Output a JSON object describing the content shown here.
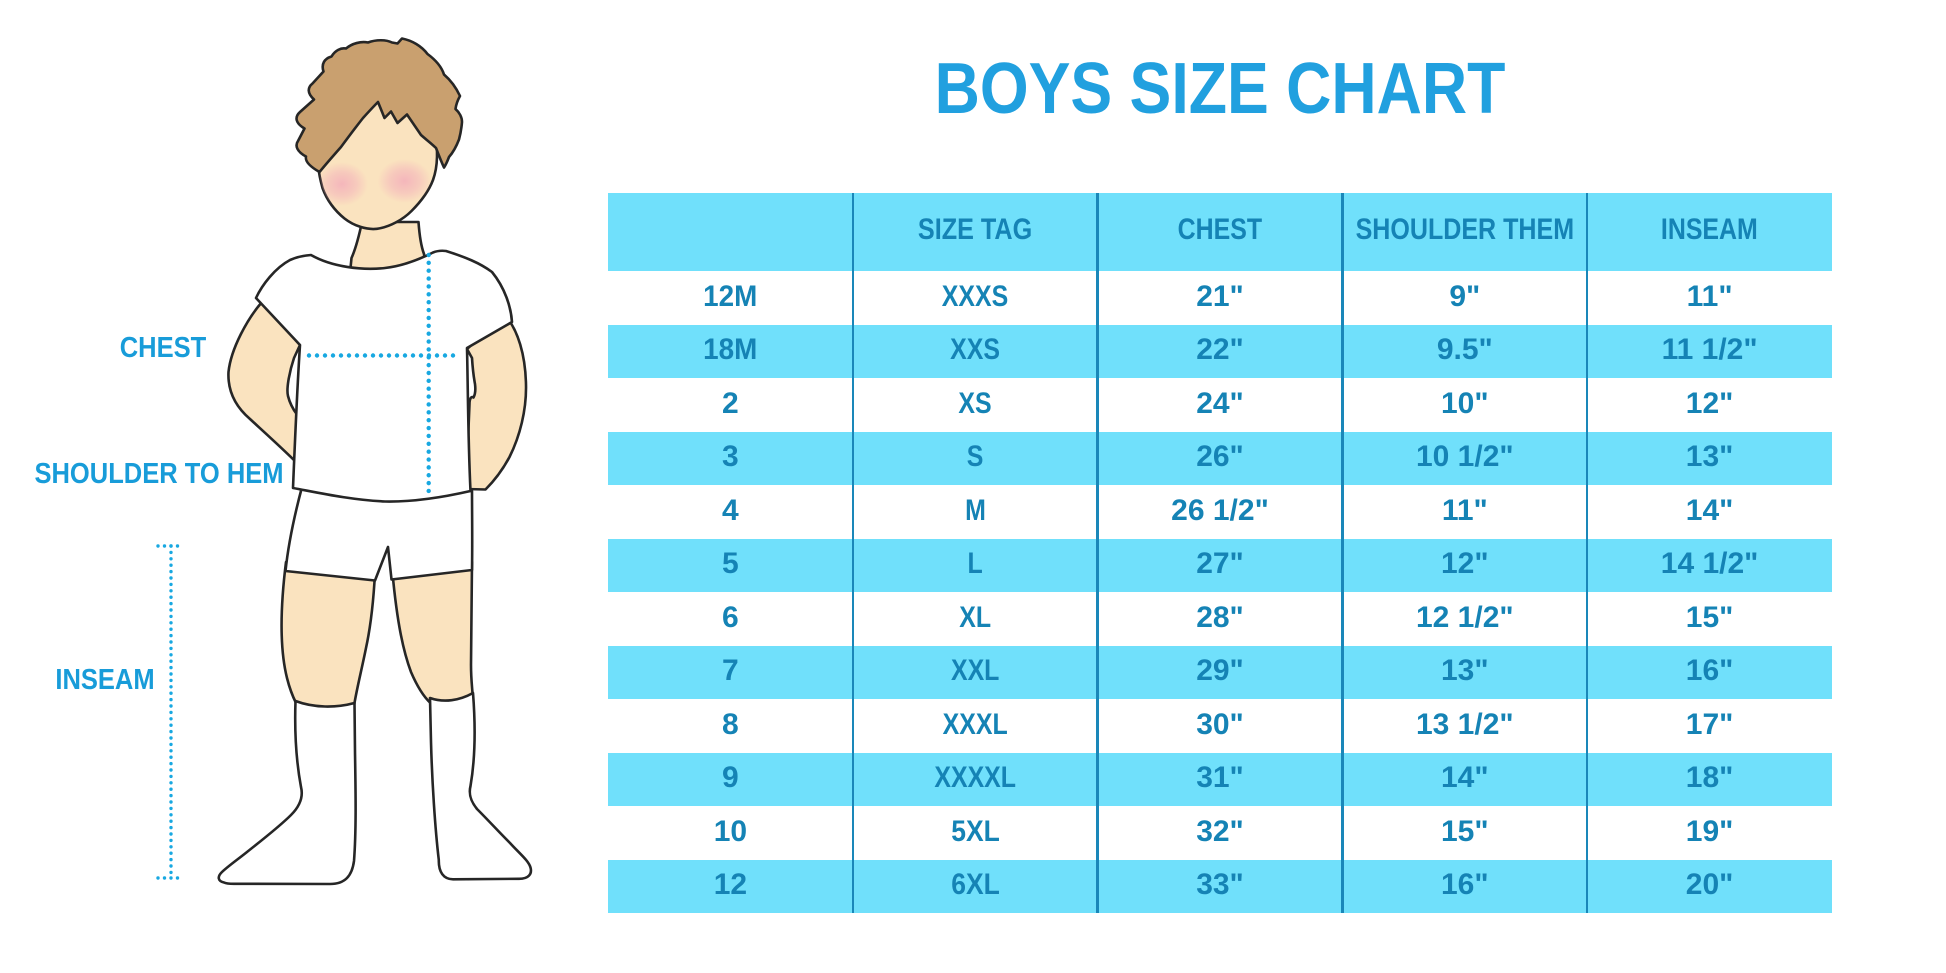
{
  "title": {
    "text": "BOYS SIZE CHART",
    "color": "#21A0DF"
  },
  "figure": {
    "labels": {
      "chest": "CHEST",
      "shoulder_to_hem": "SHOULDER TO HEM",
      "inseam": "INSEAM"
    },
    "colors": {
      "skin": "#FAE3BF",
      "hair": "#C9A06F",
      "outline": "#262626",
      "garment": "#FFFFFF",
      "blush": "#F5A9B8",
      "measure_dots": "#18A8E1",
      "label_text": "#189CD9"
    }
  },
  "chart_data": {
    "type": "table",
    "title": "BOYS SIZE CHART",
    "columns": [
      "",
      "SIZE TAG",
      "CHEST",
      "SHOULDER THEM",
      "INSEAM"
    ],
    "rows": [
      [
        "12M",
        "XXXS",
        "21\"",
        "9\"",
        "11\""
      ],
      [
        "18M",
        "XXS",
        "22\"",
        "9.5\"",
        "11 1/2\""
      ],
      [
        "2",
        "XS",
        "24\"",
        "10\"",
        "12\""
      ],
      [
        "3",
        "S",
        "26\"",
        "10 1/2\"",
        "13\""
      ],
      [
        "4",
        "M",
        "26 1/2\"",
        "11\"",
        "14\""
      ],
      [
        "5",
        "L",
        "27\"",
        "12\"",
        "14 1/2\""
      ],
      [
        "6",
        "XL",
        "28\"",
        "12 1/2\"",
        "15\""
      ],
      [
        "7",
        "XXL",
        "29\"",
        "13\"",
        "16\""
      ],
      [
        "8",
        "XXXL",
        "30\"",
        "13 1/2\"",
        "17\""
      ],
      [
        "9",
        "XXXXL",
        "31\"",
        "14\"",
        "18\""
      ],
      [
        "10",
        "5XL",
        "32\"",
        "15\"",
        "19\""
      ],
      [
        "12",
        "6XL",
        "33\"",
        "16\"",
        "20\""
      ]
    ],
    "style": {
      "header_fill": "#70E0FB",
      "row_fill": "#FFFFFF",
      "alt_row_fill": "#70E0FB",
      "text_color": "#1583B5",
      "divider_color": "#1A87B9",
      "grid": "columns-only",
      "legend": "none"
    }
  }
}
